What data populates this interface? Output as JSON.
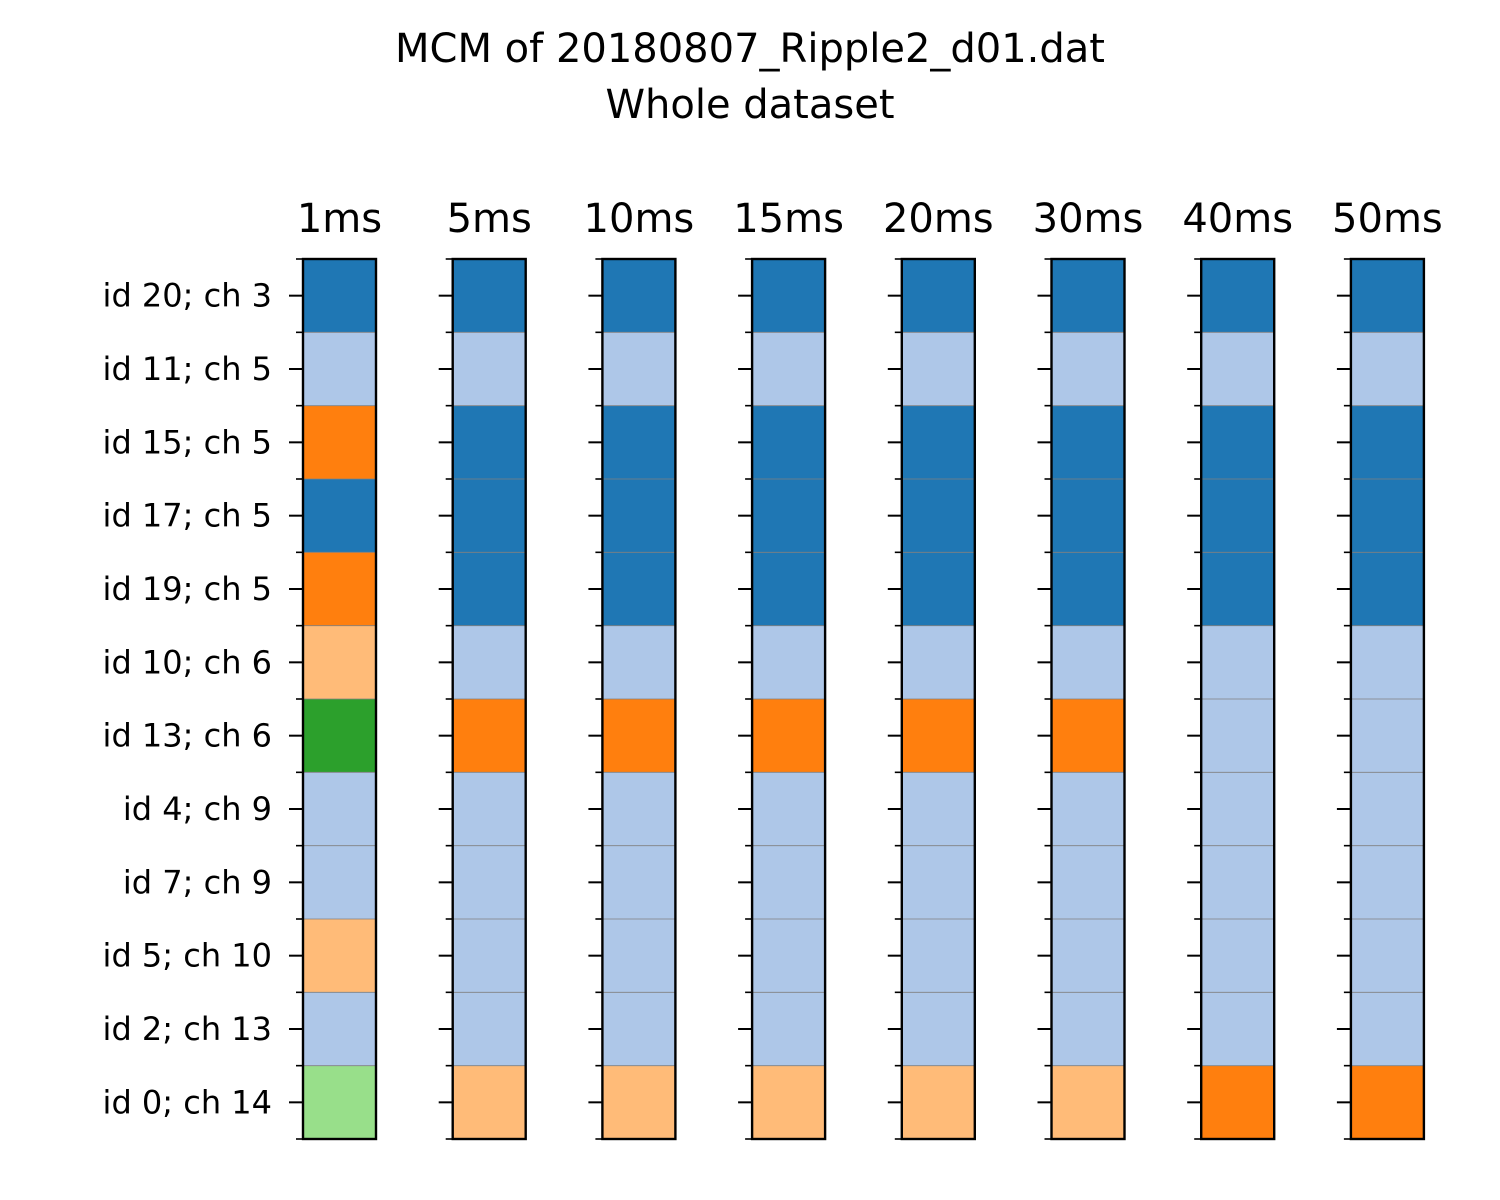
{
  "chart_data": {
    "type": "heatmap",
    "title": "MCM of 20180807_Ripple2_d01.dat",
    "subtitle": "Whole dataset",
    "columns": [
      "1ms",
      "5ms",
      "10ms",
      "15ms",
      "20ms",
      "30ms",
      "40ms",
      "50ms"
    ],
    "rows": [
      "id 20; ch 3",
      "id 11; ch 5",
      "id 15; ch 5",
      "id 17; ch 5",
      "id 19; ch 5",
      "id 10; ch 6",
      "id 13; ch 6",
      "id 4; ch 9",
      "id 7; ch 9",
      "id 5; ch 10",
      "id 2; ch 13",
      "id 0; ch 14"
    ],
    "palette": [
      "#1f77b4",
      "#aec7e8",
      "#ff7f0e",
      "#ffbb78",
      "#2ca02c",
      "#98df8a"
    ],
    "cluster_assignments": [
      [
        0,
        1,
        2,
        0,
        2,
        3,
        4,
        1,
        1,
        3,
        1,
        5
      ],
      [
        0,
        1,
        0,
        0,
        0,
        1,
        2,
        1,
        1,
        1,
        1,
        3
      ],
      [
        0,
        1,
        0,
        0,
        0,
        1,
        2,
        1,
        1,
        1,
        1,
        3
      ],
      [
        0,
        1,
        0,
        0,
        0,
        1,
        2,
        1,
        1,
        1,
        1,
        3
      ],
      [
        0,
        1,
        0,
        0,
        0,
        1,
        2,
        1,
        1,
        1,
        1,
        3
      ],
      [
        0,
        1,
        0,
        0,
        0,
        1,
        2,
        1,
        1,
        1,
        1,
        3
      ],
      [
        0,
        1,
        0,
        0,
        0,
        1,
        1,
        1,
        1,
        1,
        1,
        2
      ],
      [
        0,
        1,
        0,
        0,
        0,
        1,
        1,
        1,
        1,
        1,
        1,
        2
      ]
    ]
  }
}
